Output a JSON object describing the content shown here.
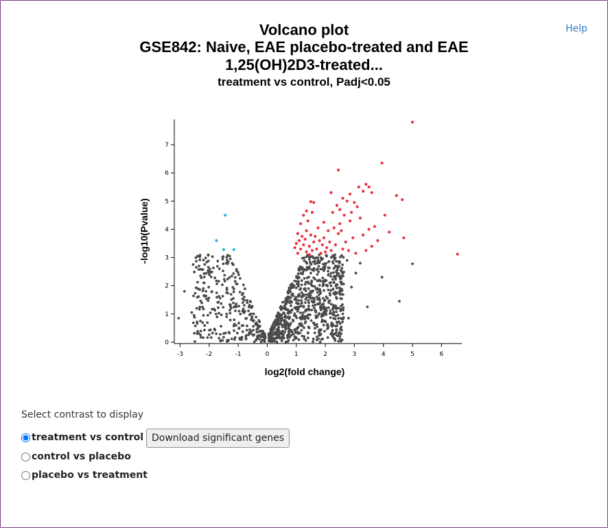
{
  "help_link": "Help",
  "title_line1": "Volcano plot",
  "title_line2": "GSE842: Naive, EAE placebo-treated and EAE",
  "title_line3": "1,25(OH)2D3-treated...",
  "subtitle": "treatment vs control, Padj<0.05",
  "controls": {
    "label": "Select contrast to display",
    "options": [
      "treatment vs control",
      "control vs placebo",
      "placebo vs treatment"
    ],
    "selected": "treatment vs control",
    "download_button": "Download significant genes"
  },
  "colors": {
    "up": "#e8313f",
    "down": "#29b6d6",
    "ns": "#4a4a4a"
  },
  "chart_data": {
    "type": "scatter",
    "xlabel": "log2(fold change)",
    "ylabel": "-log10(Pvalue)",
    "xlim": [
      -3.2,
      6.7
    ],
    "ylim": [
      -0.05,
      7.9
    ],
    "xticks": [
      -3,
      -2,
      -1,
      0,
      1,
      2,
      3,
      4,
      5,
      6
    ],
    "yticks": [
      0,
      1,
      2,
      3,
      4,
      5,
      6,
      7
    ],
    "series": [
      {
        "category": "up",
        "points": [
          [
            5.0,
            7.8
          ],
          [
            2.45,
            6.1
          ],
          [
            3.95,
            6.35
          ],
          [
            6.55,
            3.12
          ],
          [
            3.4,
            5.6
          ],
          [
            3.5,
            5.5
          ],
          [
            3.6,
            5.3
          ],
          [
            3.15,
            5.5
          ],
          [
            2.85,
            5.25
          ],
          [
            4.45,
            5.2
          ],
          [
            4.65,
            5.05
          ],
          [
            3.3,
            5.35
          ],
          [
            2.75,
            5.0
          ],
          [
            3.0,
            4.95
          ],
          [
            2.6,
            5.1
          ],
          [
            2.2,
            5.3
          ],
          [
            1.6,
            4.95
          ],
          [
            1.5,
            4.98
          ],
          [
            2.4,
            4.85
          ],
          [
            2.5,
            4.7
          ],
          [
            2.9,
            4.6
          ],
          [
            3.1,
            4.8
          ],
          [
            3.2,
            4.4
          ],
          [
            4.05,
            4.5
          ],
          [
            4.2,
            3.9
          ],
          [
            4.7,
            3.7
          ],
          [
            3.7,
            4.1
          ],
          [
            3.5,
            4.0
          ],
          [
            3.8,
            3.6
          ],
          [
            3.6,
            3.4
          ],
          [
            3.3,
            3.8
          ],
          [
            2.95,
            3.7
          ],
          [
            2.7,
            3.55
          ],
          [
            2.85,
            4.3
          ],
          [
            2.5,
            4.2
          ],
          [
            2.3,
            4.05
          ],
          [
            2.45,
            3.85
          ],
          [
            2.1,
            3.95
          ],
          [
            1.95,
            4.25
          ],
          [
            1.75,
            4.05
          ],
          [
            1.35,
            4.65
          ],
          [
            1.25,
            4.5
          ],
          [
            1.4,
            4.3
          ],
          [
            1.55,
            4.6
          ],
          [
            1.15,
            4.2
          ],
          [
            1.05,
            3.85
          ],
          [
            1.2,
            3.75
          ],
          [
            1.35,
            3.95
          ],
          [
            1.5,
            3.8
          ],
          [
            1.65,
            3.75
          ],
          [
            1.8,
            3.6
          ],
          [
            1.9,
            3.45
          ],
          [
            2.05,
            3.35
          ],
          [
            2.2,
            3.25
          ],
          [
            1.0,
            3.5
          ],
          [
            0.95,
            3.35
          ],
          [
            1.05,
            3.15
          ],
          [
            1.15,
            3.3
          ],
          [
            1.25,
            3.45
          ],
          [
            1.35,
            3.2
          ],
          [
            1.45,
            3.4
          ],
          [
            1.55,
            3.25
          ],
          [
            1.6,
            3.55
          ],
          [
            1.7,
            3.3
          ],
          [
            1.85,
            3.15
          ],
          [
            1.95,
            3.7
          ],
          [
            2.15,
            3.55
          ],
          [
            2.35,
            3.45
          ],
          [
            2.6,
            3.3
          ],
          [
            2.8,
            3.25
          ],
          [
            3.05,
            3.15
          ],
          [
            2.55,
            3.95
          ],
          [
            1.45,
            3.1
          ],
          [
            1.1,
            3.6
          ],
          [
            1.3,
            3.65
          ],
          [
            2.0,
            3.2
          ],
          [
            2.65,
            4.5
          ],
          [
            3.4,
            3.25
          ],
          [
            2.25,
            4.6
          ]
        ]
      },
      {
        "category": "down",
        "points": [
          [
            -1.45,
            4.5
          ],
          [
            -1.75,
            3.6
          ],
          [
            -1.5,
            3.28
          ],
          [
            -1.15,
            3.28
          ]
        ]
      }
    ]
  }
}
